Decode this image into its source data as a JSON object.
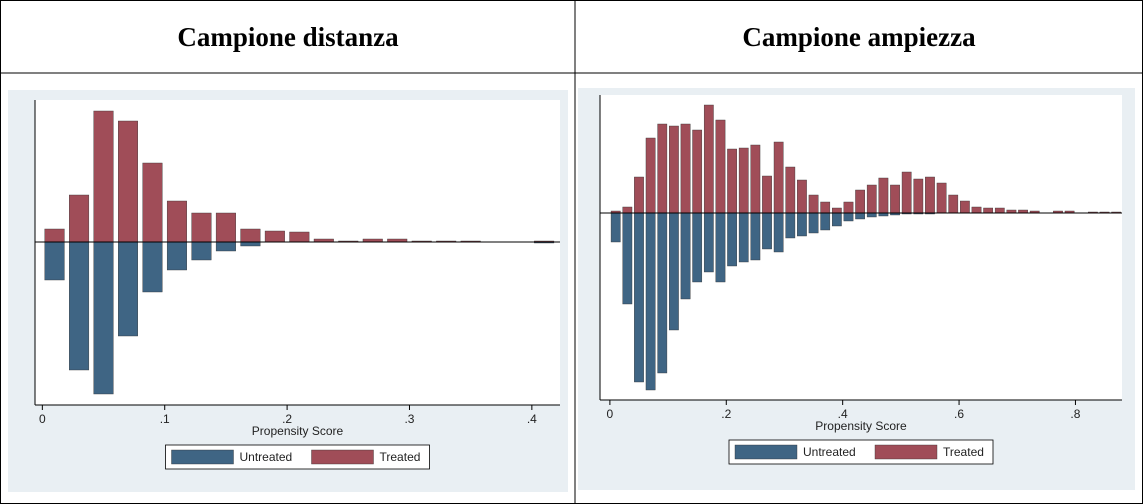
{
  "table": {
    "headers": [
      "Campione distanza",
      "Campione ampiezza"
    ]
  },
  "chart_data": [
    {
      "type": "histogram",
      "x_label": "Propensity Score",
      "bins": [
        0,
        0.02,
        0.04,
        0.06,
        0.08,
        0.1,
        0.12,
        0.14,
        0.16,
        0.18,
        0.2,
        0.22,
        0.24,
        0.26,
        0.28,
        0.3,
        0.32,
        0.34,
        0.36,
        0.38,
        0.4,
        0.42
      ],
      "series": [
        {
          "name": "Untreated",
          "color": "#3f6584",
          "values": [
            -38,
            -128,
            -152,
            -94,
            -50,
            -28,
            -18,
            -9,
            -4,
            0,
            0,
            0,
            0,
            0,
            0,
            0,
            0,
            0,
            0,
            0,
            -1
          ]
        },
        {
          "name": "Treated",
          "color": "#a04d58",
          "values": [
            13,
            47,
            131,
            121,
            79,
            41,
            29,
            29,
            13,
            11,
            10,
            3,
            1,
            3,
            3,
            1,
            1,
            1,
            0,
            0,
            1
          ]
        }
      ],
      "xlim": [
        -0.006,
        0.423
      ],
      "ylim": [
        -158,
        137
      ],
      "xticks": [
        0,
        {
          "value": 0.1,
          "label": ".1"
        },
        {
          "value": 0.2,
          "label": ".2"
        },
        {
          "value": 0.3,
          "label": ".3"
        },
        {
          "value": 0.4,
          "label": ".4"
        }
      ]
    },
    {
      "type": "histogram",
      "x_label": "Propensity Score",
      "bins": [
        0,
        0.02,
        0.04,
        0.06,
        0.08,
        0.1,
        0.12,
        0.14,
        0.16,
        0.18,
        0.2,
        0.22,
        0.24,
        0.26,
        0.28,
        0.3,
        0.32,
        0.34,
        0.36,
        0.38,
        0.4,
        0.42,
        0.44,
        0.46,
        0.48,
        0.5,
        0.52,
        0.54,
        0.56,
        0.58,
        0.6,
        0.62,
        0.64,
        0.66,
        0.68,
        0.7,
        0.72,
        0.74,
        0.76,
        0.78,
        0.8,
        0.82,
        0.84,
        0.86,
        0.88
      ],
      "series": [
        {
          "name": "Untreated",
          "color": "#3f6584",
          "values": [
            -29,
            -91,
            -169,
            -177,
            -160,
            -117,
            -86,
            -69,
            -59,
            -69,
            -53,
            -49,
            -47,
            -36,
            -39,
            -25,
            -23,
            -20,
            -17,
            -13,
            -8,
            -6,
            -4,
            -3,
            -2,
            -1,
            -1,
            -1,
            0,
            0,
            0,
            0,
            0,
            0,
            0,
            0,
            0,
            0,
            0,
            0,
            0,
            0,
            0,
            0
          ]
        },
        {
          "name": "Treated",
          "color": "#a04d58",
          "values": [
            2,
            6,
            36,
            75,
            89,
            87,
            89,
            83,
            108,
            93,
            64,
            65,
            68,
            37,
            71,
            46,
            33,
            18,
            11,
            5,
            11,
            23,
            28,
            35,
            28,
            41,
            34,
            36,
            30,
            18,
            12,
            6,
            5,
            5,
            3,
            3,
            2,
            0,
            2,
            2,
            0,
            1,
            1,
            1
          ]
        }
      ],
      "xlim": [
        -0.017,
        0.88
      ],
      "ylim": [
        -182,
        113
      ],
      "xticks": [
        0,
        {
          "value": 0.2,
          "label": ".2"
        },
        {
          "value": 0.4,
          "label": ".4"
        },
        {
          "value": 0.6,
          "label": ".6"
        },
        {
          "value": 0.8,
          "label": ".8"
        }
      ]
    }
  ]
}
